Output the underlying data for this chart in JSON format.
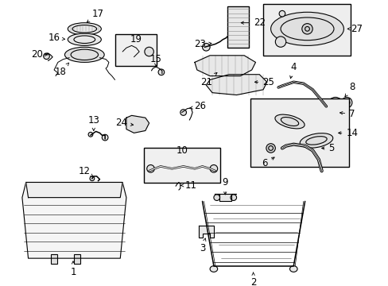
{
  "bg_color": "#ffffff",
  "line_color": "#000000",
  "fig_width": 4.89,
  "fig_height": 3.6,
  "dpi": 100,
  "label_fontsize": 8.5,
  "arrow_lw": 0.6,
  "part_lw": 0.8
}
